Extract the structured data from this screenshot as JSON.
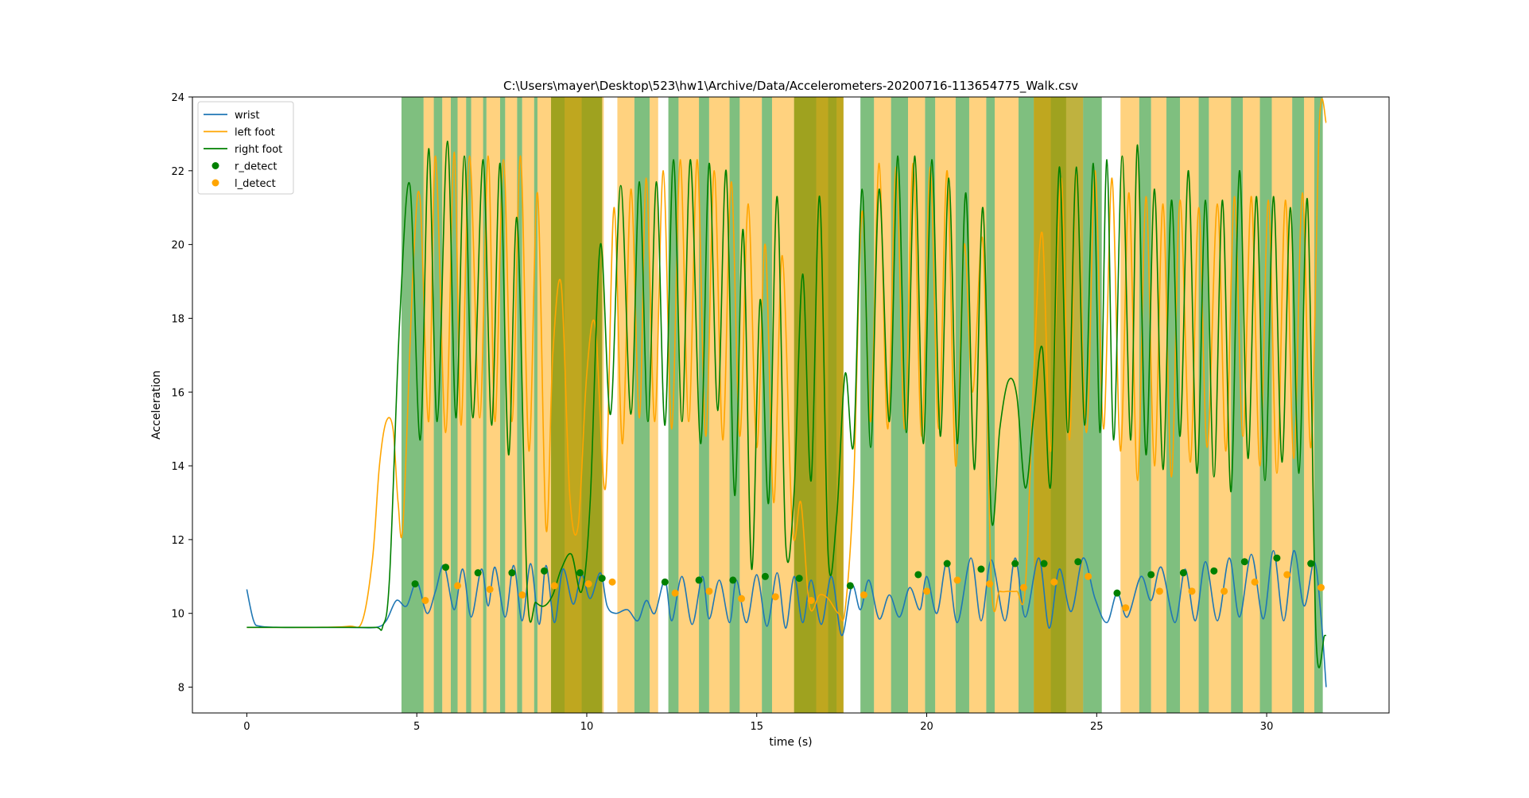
{
  "chart_data": {
    "type": "line",
    "title": "C:\\Users\\mayer\\Desktop\\523\\hw1\\Archive/Data/Accelerometers-20200716-113654775_Walk.csv",
    "xlabel": "time (s)",
    "ylabel": "Acceleration",
    "xlim": [
      -1.6,
      33.6
    ],
    "ylim": [
      7.3,
      24.0
    ],
    "xticks": [
      0,
      5,
      10,
      15,
      20,
      25,
      30
    ],
    "yticks": [
      8,
      10,
      12,
      14,
      16,
      18,
      20,
      22,
      24
    ],
    "legend_position": "upper-left",
    "colors": {
      "wrist": "#1f77b4",
      "left_foot": "#ffa500",
      "right_foot": "#008000",
      "right_band": "#008000",
      "left_band": "#ffa500"
    },
    "series": [
      {
        "name": "wrist",
        "color": "#1f77b4",
        "x": [
          0,
          0.2,
          0.4,
          1,
          2,
          3,
          3.8,
          4.1,
          4.4,
          4.7,
          5.0,
          5.3,
          5.55,
          5.8,
          6.1,
          6.35,
          6.6,
          6.9,
          7.1,
          7.3,
          7.6,
          7.85,
          8.1,
          8.35,
          8.6,
          8.8,
          9.05,
          9.3,
          9.6,
          9.85,
          10.1,
          10.4,
          10.6,
          10.85,
          11.2,
          11.5,
          11.75,
          12.0,
          12.3,
          12.5,
          12.8,
          13.1,
          13.4,
          13.6,
          13.9,
          14.2,
          14.4,
          14.7,
          15.0,
          15.3,
          15.6,
          15.85,
          16.1,
          16.35,
          16.6,
          16.9,
          17.2,
          17.5,
          17.8,
          18.05,
          18.3,
          18.6,
          18.9,
          19.2,
          19.5,
          19.8,
          20.0,
          20.3,
          20.6,
          20.9,
          21.3,
          21.6,
          21.9,
          22.3,
          22.6,
          22.9,
          23.3,
          23.6,
          23.9,
          24.25,
          24.6,
          24.95,
          25.3,
          25.6,
          25.9,
          26.3,
          26.6,
          26.9,
          27.3,
          27.6,
          27.9,
          28.2,
          28.55,
          28.9,
          29.2,
          29.55,
          29.9,
          30.2,
          30.5,
          30.8,
          31.1,
          31.4,
          31.6,
          31.75
        ],
        "y": [
          10.65,
          9.8,
          9.65,
          9.62,
          9.62,
          9.62,
          9.62,
          9.8,
          10.35,
          10.2,
          10.85,
          10.0,
          10.6,
          11.3,
          10.1,
          11.2,
          9.9,
          11.2,
          10.2,
          11.25,
          9.9,
          11.3,
          9.8,
          11.35,
          9.7,
          11.3,
          9.75,
          11.2,
          10.25,
          11.05,
          10.4,
          11.1,
          10.2,
          10.0,
          10.1,
          9.8,
          10.35,
          10.0,
          10.9,
          9.8,
          11.0,
          9.7,
          11.0,
          9.85,
          10.9,
          9.75,
          10.9,
          9.75,
          11.05,
          9.65,
          11.1,
          9.6,
          11.0,
          9.75,
          10.9,
          9.7,
          11.0,
          9.4,
          10.75,
          10.1,
          10.9,
          9.85,
          10.5,
          9.9,
          10.7,
          10.1,
          11.0,
          10.0,
          11.4,
          9.75,
          11.5,
          9.8,
          11.45,
          9.8,
          11.5,
          9.9,
          11.5,
          9.6,
          11.2,
          10.05,
          11.5,
          10.4,
          9.75,
          10.55,
          9.9,
          11.0,
          10.35,
          11.25,
          9.75,
          11.2,
          9.8,
          11.4,
          9.8,
          11.5,
          9.9,
          11.6,
          9.85,
          11.7,
          9.8,
          11.7,
          10.2,
          11.4,
          9.9,
          8.0
        ]
      },
      {
        "name": "left foot",
        "color": "#ffa500",
        "x": [
          0,
          1,
          2,
          3,
          3.4,
          3.7,
          3.9,
          4.1,
          4.3,
          4.45,
          4.6,
          4.9,
          5.1,
          5.35,
          5.55,
          5.85,
          6.1,
          6.3,
          6.55,
          6.85,
          7.1,
          7.3,
          7.55,
          7.8,
          8.05,
          8.3,
          8.55,
          8.8,
          9.0,
          9.25,
          9.5,
          9.75,
          10.0,
          10.25,
          10.55,
          10.8,
          11.05,
          11.3,
          11.55,
          11.75,
          12.0,
          12.25,
          12.5,
          12.75,
          13.0,
          13.25,
          13.5,
          13.75,
          14.0,
          14.25,
          14.5,
          14.75,
          15.0,
          15.25,
          15.5,
          15.75,
          16.05,
          16.3,
          16.55,
          16.85,
          17.1,
          17.4,
          17.6,
          17.85,
          18.1,
          18.35,
          18.6,
          18.85,
          19.1,
          19.35,
          19.6,
          19.85,
          20.1,
          20.35,
          20.6,
          20.85,
          21.1,
          21.35,
          21.65,
          21.9,
          22.15,
          22.4,
          22.65,
          22.9,
          23.15,
          23.4,
          23.65,
          23.95,
          24.2,
          24.4,
          24.7,
          24.95,
          25.2,
          25.45,
          25.7,
          25.95,
          26.2,
          26.45,
          26.7,
          26.95,
          27.2,
          27.45,
          27.75,
          28.0,
          28.25,
          28.55,
          28.8,
          29.05,
          29.3,
          29.55,
          29.8,
          30.05,
          30.3,
          30.55,
          30.8,
          31.05,
          31.3,
          31.55,
          31.75
        ],
        "y": [
          9.62,
          9.62,
          9.62,
          9.65,
          9.8,
          11.5,
          14.0,
          15.2,
          15.0,
          13.0,
          12.5,
          19.5,
          21.2,
          15.2,
          22.4,
          14.9,
          22.5,
          15.1,
          22.4,
          15.3,
          22.4,
          15.2,
          22.3,
          15.2,
          22.4,
          14.4,
          21.4,
          12.3,
          17.0,
          18.9,
          13.2,
          12.4,
          16.5,
          17.8,
          13.4,
          21.0,
          14.6,
          21.5,
          15.3,
          21.8,
          15.2,
          22.0,
          15.0,
          22.3,
          15.2,
          22.3,
          14.8,
          22.0,
          14.7,
          21.7,
          14.8,
          21.1,
          14.5,
          20.0,
          13.0,
          19.7,
          12.3,
          13.0,
          10.2,
          10.5,
          10.4,
          10.0,
          10.1,
          13.5,
          20.9,
          15.2,
          22.2,
          15.0,
          22.1,
          15.0,
          22.2,
          14.8,
          22.1,
          15.0,
          22.0,
          14.0,
          20.0,
          16.0,
          20.1,
          10.8,
          10.6,
          10.6,
          10.6,
          10.7,
          16.5,
          20.3,
          14.4,
          21.8,
          14.7,
          21.9,
          14.9,
          22.0,
          15.0,
          21.8,
          14.4,
          21.4,
          13.6,
          21.3,
          14.0,
          21.1,
          13.7,
          21.2,
          14.1,
          21.0,
          14.5,
          21.1,
          14.4,
          21.3,
          14.8,
          21.3,
          14.0,
          21.2,
          13.8,
          21.2,
          14.2,
          21.4,
          14.5,
          23.3,
          23.3
        ],
        "y_note": ""
      },
      {
        "name": "right foot",
        "color": "#008000",
        "x": [
          0,
          1,
          2,
          3,
          3.8,
          4.0,
          4.2,
          4.5,
          4.8,
          5.1,
          5.35,
          5.6,
          5.9,
          6.15,
          6.4,
          6.65,
          6.95,
          7.2,
          7.45,
          7.7,
          7.95,
          8.25,
          8.5,
          8.75,
          9.0,
          9.25,
          9.55,
          9.85,
          10.1,
          10.4,
          10.7,
          11.0,
          11.3,
          11.55,
          11.8,
          12.05,
          12.3,
          12.55,
          12.8,
          13.05,
          13.35,
          13.6,
          13.85,
          14.1,
          14.35,
          14.6,
          14.85,
          15.1,
          15.35,
          15.6,
          15.85,
          16.1,
          16.35,
          16.6,
          16.85,
          17.1,
          17.35,
          17.6,
          17.85,
          18.1,
          18.35,
          18.6,
          18.9,
          19.15,
          19.4,
          19.65,
          19.9,
          20.15,
          20.4,
          20.65,
          20.9,
          21.15,
          21.4,
          21.65,
          21.9,
          22.15,
          22.4,
          22.65,
          22.9,
          23.15,
          23.4,
          23.65,
          23.9,
          24.15,
          24.4,
          24.65,
          24.9,
          25.1,
          25.3,
          25.5,
          25.75,
          26.0,
          26.2,
          26.45,
          26.7,
          26.95,
          27.2,
          27.45,
          27.7,
          27.95,
          28.2,
          28.45,
          28.7,
          28.95,
          29.2,
          29.45,
          29.7,
          29.95,
          30.2,
          30.45,
          30.7,
          30.95,
          31.2,
          31.45,
          31.7,
          31.75
        ],
        "y": [
          9.62,
          9.62,
          9.62,
          9.62,
          9.62,
          9.65,
          11.0,
          18.0,
          21.6,
          14.7,
          22.6,
          15.2,
          22.8,
          15.3,
          22.4,
          15.3,
          22.3,
          15.1,
          22.2,
          14.3,
          20.7,
          10.6,
          10.3,
          10.2,
          10.5,
          11.2,
          11.6,
          10.6,
          13.0,
          20.0,
          15.4,
          21.6,
          15.4,
          21.7,
          15.2,
          21.7,
          15.1,
          22.3,
          15.2,
          22.3,
          14.6,
          22.2,
          15.5,
          22.0,
          13.2,
          20.4,
          11.2,
          18.5,
          13.0,
          21.3,
          11.9,
          13.3,
          19.2,
          13.6,
          21.3,
          11.6,
          12.6,
          16.5,
          14.6,
          21.5,
          14.5,
          21.5,
          15.2,
          22.4,
          14.9,
          22.4,
          14.6,
          22.3,
          14.8,
          21.8,
          14.6,
          21.4,
          13.9,
          21.0,
          12.6,
          15.0,
          16.3,
          15.9,
          13.4,
          15.4,
          17.2,
          13.5,
          22.1,
          14.9,
          22.1,
          15.1,
          22.2,
          14.9,
          22.3,
          14.7,
          22.4,
          14.7,
          22.7,
          14.3,
          21.5,
          13.9,
          21.2,
          14.8,
          22.0,
          13.8,
          21.2,
          13.7,
          21.2,
          13.3,
          22.0,
          14.2,
          21.3,
          13.6,
          21.3,
          14.1,
          21.0,
          13.8,
          21.2,
          9.4,
          9.4,
          9.4
        ],
        "y_note": ""
      }
    ],
    "markers": [
      {
        "name": "r_detect",
        "color": "#008000",
        "points": [
          [
            4.95,
            10.8
          ],
          [
            5.85,
            11.25
          ],
          [
            6.8,
            11.1
          ],
          [
            7.8,
            11.1
          ],
          [
            8.75,
            11.15
          ],
          [
            9.8,
            11.1
          ],
          [
            10.45,
            10.95
          ],
          [
            12.3,
            10.85
          ],
          [
            13.3,
            10.9
          ],
          [
            14.3,
            10.9
          ],
          [
            15.25,
            11.0
          ],
          [
            16.25,
            10.95
          ],
          [
            17.75,
            10.75
          ],
          [
            19.75,
            11.05
          ],
          [
            20.6,
            11.35
          ],
          [
            21.6,
            11.2
          ],
          [
            22.6,
            11.35
          ],
          [
            23.45,
            11.35
          ],
          [
            24.45,
            11.4
          ],
          [
            25.6,
            10.55
          ],
          [
            26.6,
            11.05
          ],
          [
            27.55,
            11.1
          ],
          [
            28.45,
            11.15
          ],
          [
            29.35,
            11.4
          ],
          [
            30.3,
            11.5
          ],
          [
            31.3,
            11.35
          ]
        ]
      },
      {
        "name": "l_detect",
        "color": "#ffa500",
        "points": [
          [
            5.25,
            10.35
          ],
          [
            6.2,
            10.75
          ],
          [
            7.15,
            10.65
          ],
          [
            8.1,
            10.5
          ],
          [
            9.05,
            10.75
          ],
          [
            10.05,
            10.8
          ],
          [
            10.75,
            10.85
          ],
          [
            12.6,
            10.55
          ],
          [
            13.6,
            10.6
          ],
          [
            14.55,
            10.4
          ],
          [
            15.55,
            10.45
          ],
          [
            16.6,
            10.35
          ],
          [
            18.15,
            10.5
          ],
          [
            20.0,
            10.6
          ],
          [
            20.9,
            10.9
          ],
          [
            21.85,
            10.8
          ],
          [
            22.85,
            10.7
          ],
          [
            23.75,
            10.85
          ],
          [
            24.75,
            11.0
          ],
          [
            25.85,
            10.15
          ],
          [
            26.85,
            10.6
          ],
          [
            27.8,
            10.6
          ],
          [
            28.75,
            10.6
          ],
          [
            29.65,
            10.85
          ],
          [
            30.6,
            11.05
          ],
          [
            31.6,
            10.7
          ]
        ]
      }
    ],
    "bands": {
      "right": [
        [
          4.55,
          5.2
        ],
        [
          5.5,
          5.75
        ],
        [
          6.0,
          6.2
        ],
        [
          6.45,
          6.6
        ],
        [
          6.95,
          7.05
        ],
        [
          7.45,
          7.6
        ],
        [
          7.95,
          8.1
        ],
        [
          8.45,
          8.55
        ],
        [
          8.95,
          9.35
        ],
        [
          9.85,
          10.45
        ],
        [
          11.4,
          11.85
        ],
        [
          12.4,
          12.7
        ],
        [
          13.3,
          13.6
        ],
        [
          14.2,
          14.5
        ],
        [
          15.15,
          15.45
        ],
        [
          16.1,
          16.75
        ],
        [
          17.1,
          17.35
        ],
        [
          18.05,
          18.45
        ],
        [
          18.95,
          19.45
        ],
        [
          19.95,
          20.25
        ],
        [
          20.85,
          21.25
        ],
        [
          21.75,
          22.0
        ],
        [
          22.7,
          23.15
        ],
        [
          23.65,
          24.1
        ],
        [
          24.6,
          25.15
        ],
        [
          26.25,
          26.6
        ],
        [
          27.05,
          27.45
        ],
        [
          28.0,
          28.3
        ],
        [
          28.95,
          29.3
        ],
        [
          29.8,
          30.15
        ],
        [
          30.75,
          31.1
        ],
        [
          31.4,
          31.65
        ]
      ],
      "left": [
        [
          5.2,
          5.5
        ],
        [
          5.75,
          6.0
        ],
        [
          6.2,
          6.45
        ],
        [
          6.6,
          6.95
        ],
        [
          7.05,
          7.45
        ],
        [
          7.6,
          7.95
        ],
        [
          8.1,
          8.45
        ],
        [
          8.55,
          8.95
        ],
        [
          9.35,
          9.85
        ],
        [
          10.45,
          10.5
        ],
        [
          10.9,
          11.4
        ],
        [
          11.85,
          12.1
        ],
        [
          12.7,
          13.3
        ],
        [
          13.6,
          14.2
        ],
        [
          14.5,
          15.15
        ],
        [
          15.45,
          16.1
        ],
        [
          16.75,
          17.1
        ],
        [
          17.35,
          17.55
        ],
        [
          18.45,
          18.95
        ],
        [
          19.45,
          19.95
        ],
        [
          20.25,
          20.85
        ],
        [
          21.25,
          21.75
        ],
        [
          22.0,
          22.7
        ],
        [
          23.15,
          23.65
        ],
        [
          25.7,
          26.25
        ],
        [
          26.6,
          27.05
        ],
        [
          27.45,
          28.0
        ],
        [
          28.3,
          28.95
        ],
        [
          29.3,
          29.8
        ],
        [
          30.15,
          30.75
        ],
        [
          31.1,
          31.4
        ]
      ],
      "overlap": [
        [
          8.95,
          10.45
        ],
        [
          16.1,
          17.55
        ],
        [
          23.15,
          24.6
        ]
      ]
    },
    "legend": [
      "wrist",
      "left foot",
      "right foot",
      "r_detect",
      "l_detect"
    ]
  }
}
